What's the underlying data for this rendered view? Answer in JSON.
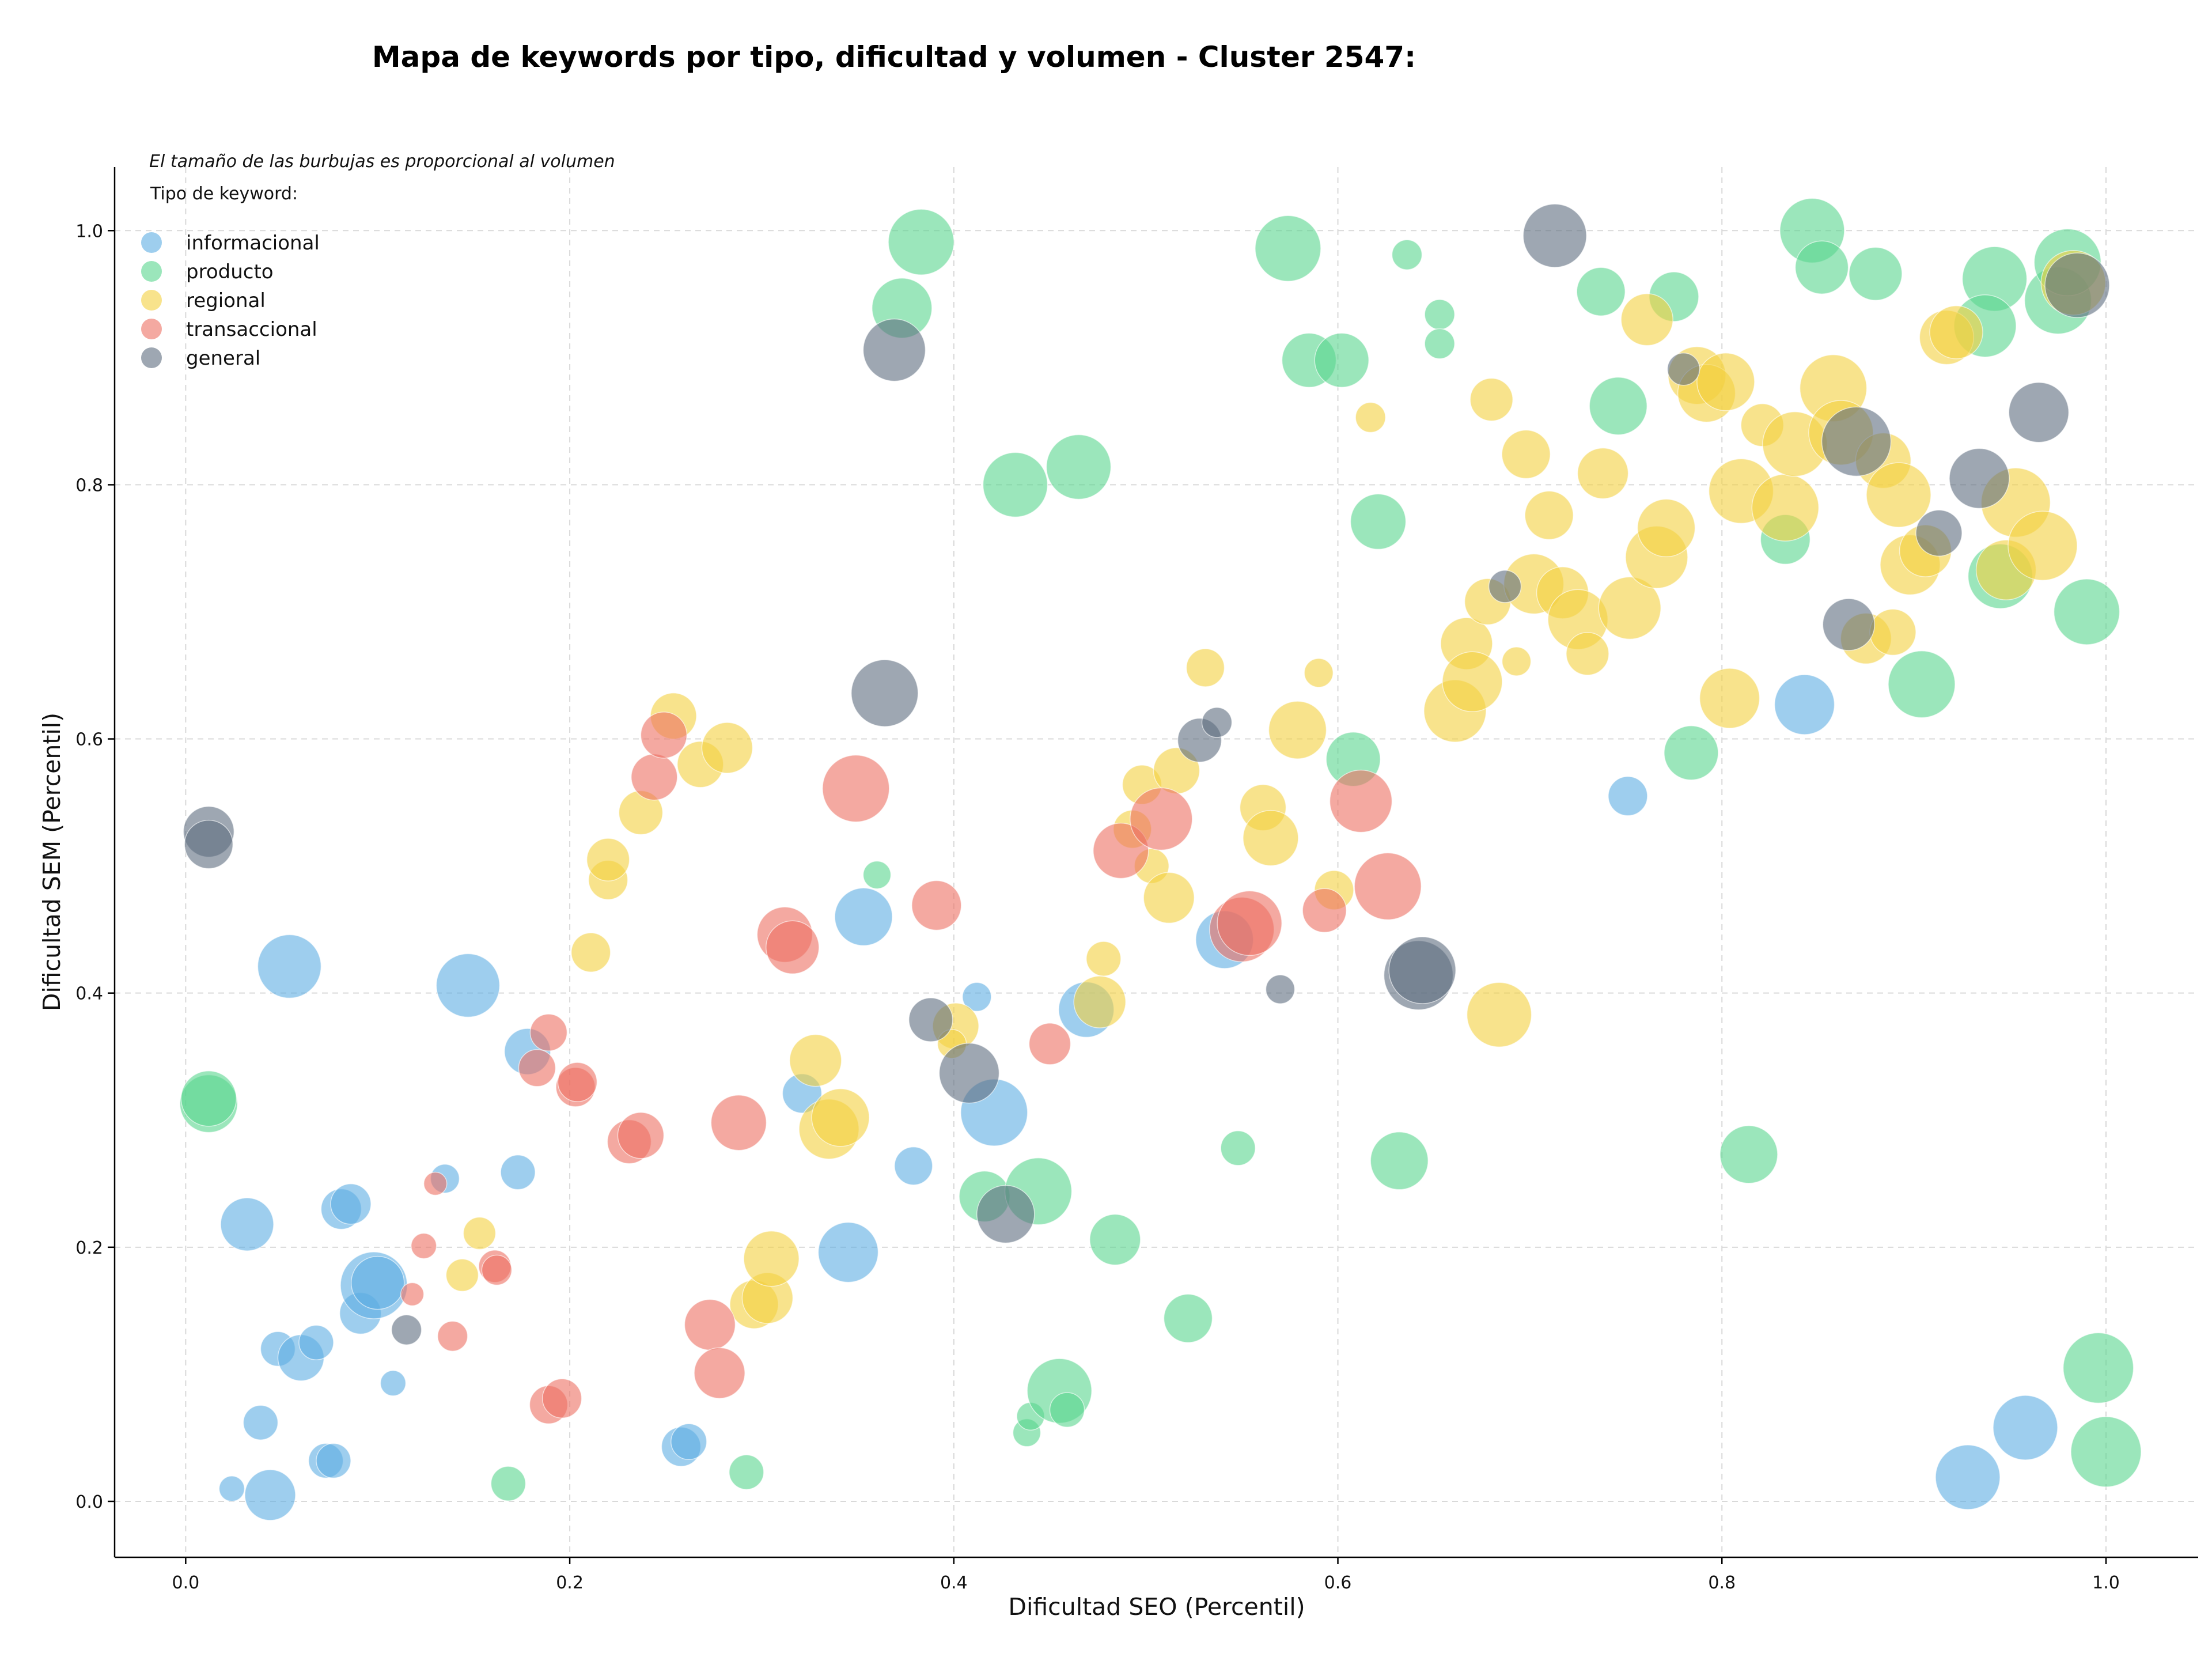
{
  "chart_data": {
    "type": "scatter",
    "variant": "bubble",
    "title": "Mapa de keywords por tipo, dificultad y volumen - Cluster 2547:",
    "xlabel": "Dificultad SEO (Percentil)",
    "ylabel": "Dificultad SEM (Percentil)",
    "annotation": "El tamaño de las burbujas es proporcional al volumen",
    "legend_title": "Tipo de keyword:",
    "legend_position": "upper-left",
    "grid": true,
    "xlim": [
      -0.037,
      1.048
    ],
    "ylim": [
      -0.044,
      1.05
    ],
    "xticks": [
      0.0,
      0.2,
      0.4,
      0.6,
      0.8,
      1.0
    ],
    "yticks": [
      0.0,
      0.2,
      0.4,
      0.6,
      0.8,
      1.0
    ],
    "xtick_labels": [
      "0.0",
      "0.2",
      "0.4",
      "0.6",
      "0.8",
      "1.0"
    ],
    "ytick_labels": [
      "0.0",
      "0.2",
      "0.4",
      "0.6",
      "0.8",
      "1.0"
    ],
    "size_note": "third value of each point is relative bubble size (volume)",
    "series": [
      {
        "name": "informacional",
        "color": "#5DADE2",
        "points": [
          [
            0.024,
            0.01,
            22
          ],
          [
            0.044,
            0.005,
            44
          ],
          [
            0.039,
            0.062,
            30
          ],
          [
            0.048,
            0.12,
            30
          ],
          [
            0.06,
            0.113,
            40
          ],
          [
            0.068,
            0.125,
            30
          ],
          [
            0.073,
            0.032,
            30
          ],
          [
            0.077,
            0.032,
            30
          ],
          [
            0.081,
            0.23,
            35
          ],
          [
            0.086,
            0.234,
            35
          ],
          [
            0.091,
            0.148,
            36
          ],
          [
            0.108,
            0.093,
            22
          ],
          [
            0.098,
            0.17,
            58
          ],
          [
            0.1,
            0.172,
            46
          ],
          [
            0.032,
            0.218,
            46
          ],
          [
            0.054,
            0.421,
            55
          ],
          [
            0.147,
            0.406,
            55
          ],
          [
            0.135,
            0.254,
            25
          ],
          [
            0.173,
            0.259,
            30
          ],
          [
            0.178,
            0.354,
            40
          ],
          [
            0.258,
            0.043,
            34
          ],
          [
            0.262,
            0.047,
            31
          ],
          [
            0.321,
            0.321,
            34
          ],
          [
            0.345,
            0.196,
            52
          ],
          [
            0.353,
            0.46,
            50
          ],
          [
            0.379,
            0.264,
            33
          ],
          [
            0.412,
            0.397,
            25
          ],
          [
            0.421,
            0.306,
            58
          ],
          [
            0.469,
            0.387,
            48
          ],
          [
            0.541,
            0.442,
            50
          ],
          [
            0.751,
            0.555,
            34
          ],
          [
            0.843,
            0.627,
            52
          ],
          [
            0.928,
            0.019,
            56
          ],
          [
            0.958,
            0.058,
            56
          ]
        ]
      },
      {
        "name": "producto",
        "color": "#58D68D",
        "points": [
          [
            0.012,
            0.313,
            50
          ],
          [
            0.012,
            0.317,
            48
          ],
          [
            0.168,
            0.014,
            30
          ],
          [
            0.292,
            0.023,
            30
          ],
          [
            0.36,
            0.493,
            24
          ],
          [
            0.373,
            0.939,
            52
          ],
          [
            0.383,
            0.991,
            57
          ],
          [
            0.416,
            0.24,
            44
          ],
          [
            0.432,
            0.8,
            56
          ],
          [
            0.438,
            0.054,
            24
          ],
          [
            0.44,
            0.067,
            24
          ],
          [
            0.444,
            0.244,
            58
          ],
          [
            0.455,
            0.087,
            56
          ],
          [
            0.459,
            0.072,
            30
          ],
          [
            0.465,
            0.814,
            56
          ],
          [
            0.484,
            0.206,
            44
          ],
          [
            0.522,
            0.144,
            42
          ],
          [
            0.548,
            0.278,
            30
          ],
          [
            0.574,
            0.986,
            57
          ],
          [
            0.585,
            0.898,
            47
          ],
          [
            0.602,
            0.898,
            47
          ],
          [
            0.608,
            0.584,
            47
          ],
          [
            0.621,
            0.771,
            48
          ],
          [
            0.632,
            0.268,
            50
          ],
          [
            0.636,
            0.981,
            26
          ],
          [
            0.653,
            0.934,
            26
          ],
          [
            0.653,
            0.911,
            26
          ],
          [
            0.737,
            0.952,
            42
          ],
          [
            0.746,
            0.862,
            50
          ],
          [
            0.775,
            0.948,
            43
          ],
          [
            0.784,
            0.589,
            47
          ],
          [
            0.814,
            0.273,
            50
          ],
          [
            0.833,
            0.757,
            43
          ],
          [
            0.847,
            1.0,
            56
          ],
          [
            0.852,
            0.971,
            46
          ],
          [
            0.88,
            0.966,
            46
          ],
          [
            0.904,
            0.643,
            58
          ],
          [
            0.942,
            0.962,
            56
          ],
          [
            0.937,
            0.925,
            54
          ],
          [
            0.945,
            0.728,
            56
          ],
          [
            0.975,
            0.945,
            58
          ],
          [
            0.98,
            0.975,
            58
          ],
          [
            0.99,
            0.7,
            57
          ],
          [
            0.996,
            0.105,
            61
          ],
          [
            1.0,
            0.039,
            61
          ]
        ]
      },
      {
        "name": "regional",
        "color": "#F4D03F",
        "points": [
          [
            0.144,
            0.178,
            28
          ],
          [
            0.153,
            0.211,
            28
          ],
          [
            0.211,
            0.432,
            34
          ],
          [
            0.22,
            0.489,
            34
          ],
          [
            0.22,
            0.505,
            37
          ],
          [
            0.237,
            0.542,
            38
          ],
          [
            0.254,
            0.618,
            40
          ],
          [
            0.268,
            0.58,
            40
          ],
          [
            0.282,
            0.593,
            44
          ],
          [
            0.296,
            0.155,
            42
          ],
          [
            0.303,
            0.16,
            44
          ],
          [
            0.305,
            0.191,
            48
          ],
          [
            0.328,
            0.347,
            45
          ],
          [
            0.335,
            0.293,
            52
          ],
          [
            0.341,
            0.302,
            50
          ],
          [
            0.401,
            0.374,
            40
          ],
          [
            0.399,
            0.36,
            25
          ],
          [
            0.478,
            0.427,
            30
          ],
          [
            0.476,
            0.393,
            45
          ],
          [
            0.498,
            0.564,
            34
          ],
          [
            0.493,
            0.529,
            33
          ],
          [
            0.503,
            0.5,
            30
          ],
          [
            0.512,
            0.475,
            44
          ],
          [
            0.516,
            0.575,
            40
          ],
          [
            0.531,
            0.656,
            33
          ],
          [
            0.561,
            0.546,
            40
          ],
          [
            0.565,
            0.522,
            48
          ],
          [
            0.579,
            0.607,
            50
          ],
          [
            0.59,
            0.652,
            25
          ],
          [
            0.598,
            0.481,
            34
          ],
          [
            0.617,
            0.853,
            26
          ],
          [
            0.661,
            0.622,
            54
          ],
          [
            0.667,
            0.675,
            45
          ],
          [
            0.67,
            0.645,
            52
          ],
          [
            0.678,
            0.708,
            40
          ],
          [
            0.68,
            0.867,
            37
          ],
          [
            0.684,
            0.383,
            56
          ],
          [
            0.693,
            0.661,
            25
          ],
          [
            0.698,
            0.824,
            42
          ],
          [
            0.702,
            0.722,
            52
          ],
          [
            0.71,
            0.776,
            42
          ],
          [
            0.717,
            0.715,
            45
          ],
          [
            0.725,
            0.694,
            52
          ],
          [
            0.73,
            0.667,
            37
          ],
          [
            0.738,
            0.809,
            44
          ],
          [
            0.752,
            0.703,
            54
          ],
          [
            0.761,
            0.93,
            45
          ],
          [
            0.766,
            0.743,
            54
          ],
          [
            0.771,
            0.766,
            50
          ],
          [
            0.787,
            0.886,
            50
          ],
          [
            0.792,
            0.872,
            50
          ],
          [
            0.802,
            0.881,
            50
          ],
          [
            0.804,
            0.632,
            52
          ],
          [
            0.81,
            0.795,
            56
          ],
          [
            0.821,
            0.847,
            37
          ],
          [
            0.833,
            0.782,
            58
          ],
          [
            0.838,
            0.832,
            56
          ],
          [
            0.858,
            0.876,
            58
          ],
          [
            0.862,
            0.841,
            56
          ],
          [
            0.875,
            0.679,
            44
          ],
          [
            0.884,
            0.819,
            48
          ],
          [
            0.889,
            0.684,
            40
          ],
          [
            0.892,
            0.792,
            56
          ],
          [
            0.898,
            0.737,
            52
          ],
          [
            0.906,
            0.748,
            45
          ],
          [
            0.917,
            0.916,
            47
          ],
          [
            0.922,
            0.92,
            46
          ],
          [
            0.948,
            0.733,
            52
          ],
          [
            0.953,
            0.786,
            60
          ],
          [
            0.967,
            0.752,
            60
          ],
          [
            0.983,
            0.959,
            56
          ]
        ]
      },
      {
        "name": "transaccional",
        "color": "#EC7063",
        "points": [
          [
            0.118,
            0.163,
            20
          ],
          [
            0.124,
            0.201,
            22
          ],
          [
            0.13,
            0.25,
            20
          ],
          [
            0.139,
            0.13,
            26
          ],
          [
            0.161,
            0.185,
            28
          ],
          [
            0.162,
            0.182,
            26
          ],
          [
            0.183,
            0.341,
            32
          ],
          [
            0.189,
            0.369,
            32
          ],
          [
            0.189,
            0.076,
            33
          ],
          [
            0.196,
            0.081,
            34
          ],
          [
            0.203,
            0.326,
            34
          ],
          [
            0.204,
            0.33,
            34
          ],
          [
            0.231,
            0.283,
            38
          ],
          [
            0.237,
            0.288,
            40
          ],
          [
            0.244,
            0.57,
            40
          ],
          [
            0.249,
            0.603,
            40
          ],
          [
            0.273,
            0.139,
            44
          ],
          [
            0.278,
            0.101,
            44
          ],
          [
            0.288,
            0.298,
            48
          ],
          [
            0.312,
            0.446,
            48
          ],
          [
            0.316,
            0.436,
            46
          ],
          [
            0.349,
            0.561,
            58
          ],
          [
            0.391,
            0.469,
            43
          ],
          [
            0.45,
            0.36,
            36
          ],
          [
            0.487,
            0.512,
            48
          ],
          [
            0.508,
            0.537,
            54
          ],
          [
            0.55,
            0.45,
            56
          ],
          [
            0.554,
            0.455,
            56
          ],
          [
            0.593,
            0.465,
            38
          ],
          [
            0.612,
            0.551,
            54
          ],
          [
            0.626,
            0.484,
            58
          ]
        ]
      },
      {
        "name": "general",
        "color": "#5D6D7E",
        "points": [
          [
            0.012,
            0.527,
            44
          ],
          [
            0.012,
            0.517,
            42
          ],
          [
            0.115,
            0.135,
            26
          ],
          [
            0.369,
            0.906,
            54
          ],
          [
            0.364,
            0.636,
            58
          ],
          [
            0.388,
            0.379,
            38
          ],
          [
            0.408,
            0.337,
            52
          ],
          [
            0.427,
            0.226,
            50
          ],
          [
            0.528,
            0.599,
            38
          ],
          [
            0.537,
            0.613,
            26
          ],
          [
            0.57,
            0.403,
            25
          ],
          [
            0.642,
            0.414,
            60
          ],
          [
            0.644,
            0.418,
            58
          ],
          [
            0.687,
            0.72,
            28
          ],
          [
            0.713,
            0.996,
            55
          ],
          [
            0.78,
            0.891,
            28
          ],
          [
            0.866,
            0.69,
            45
          ],
          [
            0.87,
            0.834,
            60
          ],
          [
            0.913,
            0.762,
            40
          ],
          [
            0.934,
            0.805,
            52
          ],
          [
            0.965,
            0.857,
            52
          ],
          [
            0.985,
            0.957,
            56
          ]
        ]
      }
    ]
  }
}
